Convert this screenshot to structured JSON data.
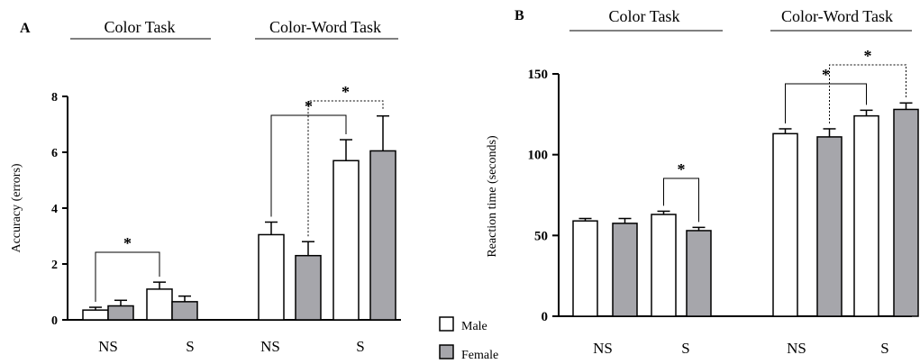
{
  "chart_data": [
    {
      "panel": "A",
      "type": "bar",
      "title": "",
      "ylabel": "Accuracy (errors)",
      "ylim": [
        0,
        8
      ],
      "yticks": [
        0,
        2,
        4,
        6,
        8
      ],
      "task_groups": [
        "Color Task",
        "Color-Word Task"
      ],
      "categories": [
        "NS",
        "S",
        "NS",
        "S"
      ],
      "series": [
        {
          "name": "Male",
          "values": [
            0.35,
            1.1,
            3.05,
            5.7
          ],
          "errors": [
            0.1,
            0.25,
            0.45,
            0.75
          ]
        },
        {
          "name": "Female",
          "values": [
            0.5,
            0.65,
            2.3,
            6.05
          ],
          "errors": [
            0.2,
            0.2,
            0.5,
            1.25
          ]
        }
      ],
      "significance": [
        {
          "label": "*",
          "from": "Color Task NS Male",
          "to": "Color Task S Male",
          "style": "solid"
        },
        {
          "label": "*",
          "from": "Color-Word Task NS Male",
          "to": "Color-Word Task S Male",
          "style": "solid"
        },
        {
          "label": "*",
          "from": "Color-Word Task NS Female",
          "to": "Color-Word Task S Female",
          "style": "dotted"
        }
      ]
    },
    {
      "panel": "B",
      "type": "bar",
      "title": "",
      "ylabel": "Reaction time (seconds)",
      "ylim": [
        0,
        150
      ],
      "yticks": [
        0,
        50,
        100,
        150
      ],
      "task_groups": [
        "Color Task",
        "Color-Word Task"
      ],
      "categories": [
        "NS",
        "S",
        "NS",
        "S"
      ],
      "series": [
        {
          "name": "Male",
          "values": [
            59,
            63,
            113,
            124
          ],
          "errors": [
            1.5,
            2,
            3,
            3.5
          ]
        },
        {
          "name": "Female",
          "values": [
            57.5,
            53,
            111,
            128
          ],
          "errors": [
            3,
            2,
            5,
            4
          ]
        }
      ],
      "significance": [
        {
          "label": "*",
          "from": "Color Task S Male",
          "to": "Color Task S Female",
          "style": "solid"
        },
        {
          "label": "*",
          "from": "Color-Word Task NS Male",
          "to": "Color-Word Task S Male",
          "style": "solid"
        },
        {
          "label": "*",
          "from": "Color-Word Task NS Female",
          "to": "Color-Word Task S Female",
          "style": "dotted"
        }
      ]
    }
  ],
  "legend": {
    "male_label": "Male",
    "female_label": "Female"
  },
  "colors": {
    "male_fill": "#ffffff",
    "female_fill": "#a6a6ab",
    "edge": "#000000"
  }
}
